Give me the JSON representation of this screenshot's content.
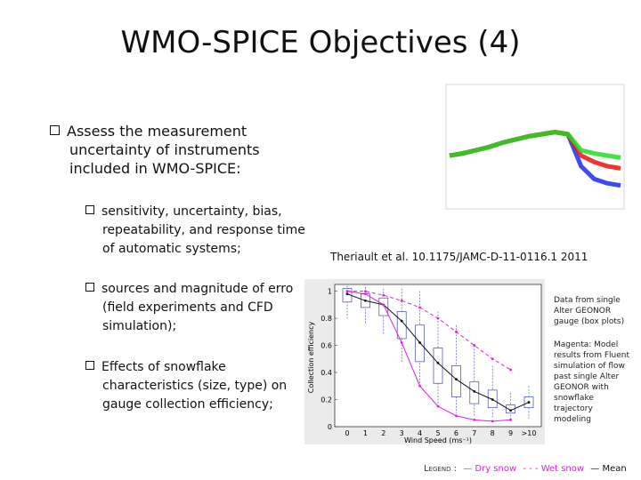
{
  "slide": {
    "title": "WMO-SPICE Objectives (4)",
    "bullet1": {
      "lines": [
        "Assess the measurement",
        "uncertainty of instruments",
        "included in WMO-SPICE:"
      ]
    },
    "sub_bullets": [
      {
        "lines": [
          "sensitivity, uncertainty, bias,",
          "repeatability, and response time",
          "of automatic systems;"
        ]
      },
      {
        "lines": [
          "sources and magnitude of erro",
          "(field experiments and CFD",
          "simulation);"
        ]
      },
      {
        "lines": [
          "Effects of snowflake",
          "characteristics (size, type) on",
          "gauge collection efficiency;"
        ]
      }
    ],
    "citation": "Theriault et al. 10.1175/JAMC-D-11-0116.1 2011",
    "annotations": {
      "box_plots": [
        "Data from single",
        "Alter GEONOR",
        "gauge (box plots)"
      ],
      "magenta": [
        "Magenta: Model",
        "results from Fluent",
        "simulation of flow",
        "past single Alter",
        "GEONOR with",
        "snowflake",
        "trajectory",
        "modeling"
      ]
    },
    "legend": {
      "label": "Legend :",
      "dry": "— Dry snow",
      "wet": "- - - Wet snow",
      "mean": "— Mean"
    },
    "colors": {
      "magenta": "#e020e0",
      "blue": "#1a2cf0",
      "green": "#22dd22",
      "red": "#ee1111"
    }
  },
  "chart_data": [
    {
      "type": "line",
      "title": "",
      "xlabel": "",
      "ylabel": "",
      "series": [
        {
          "values": [
            0.4,
            0.42,
            0.45,
            0.48,
            0.52,
            0.55,
            0.58,
            0.6,
            0.62,
            0.6,
            0.3,
            0.18,
            0.14,
            0.12
          ]
        },
        {
          "values": [
            0.4,
            0.42,
            0.45,
            0.48,
            0.52,
            0.55,
            0.58,
            0.6,
            0.62,
            0.6,
            0.4,
            0.34,
            0.3,
            0.28
          ]
        },
        {
          "values": [
            0.4,
            0.42,
            0.45,
            0.48,
            0.52,
            0.55,
            0.58,
            0.6,
            0.62,
            0.6,
            0.45,
            0.42,
            0.4,
            0.38
          ]
        }
      ]
    },
    {
      "type": "line",
      "ylabel": "Collection efficiency",
      "xlabel": "Wind Speed (ms⁻¹)",
      "categories": [
        "0",
        "1",
        "2",
        "3",
        "4",
        "5",
        "6",
        "7",
        "8",
        "9",
        ">10"
      ],
      "yticks": [
        "0",
        "0.2",
        "0.4",
        "0.6",
        "0.8",
        "1"
      ],
      "ylim": [
        0,
        1.05
      ],
      "series": [
        {
          "name": "Mean",
          "values": [
            0.98,
            0.93,
            0.9,
            0.78,
            0.62,
            0.47,
            0.35,
            0.26,
            0.2,
            0.12,
            0.18
          ]
        },
        {
          "name": "Dry snow",
          "values": [
            1.0,
            0.98,
            0.9,
            0.62,
            0.3,
            0.15,
            0.08,
            0.05,
            0.04,
            0.05,
            null
          ]
        },
        {
          "name": "Wet snow",
          "values": [
            1.0,
            1.0,
            0.97,
            0.93,
            0.88,
            0.8,
            0.7,
            0.6,
            0.5,
            0.42,
            null
          ]
        }
      ],
      "boxes": [
        {
          "q1": 0.92,
          "q3": 1.02,
          "lo": 0.8,
          "hi": 1.04
        },
        {
          "q1": 0.88,
          "q3": 0.98,
          "lo": 0.76,
          "hi": 1.03
        },
        {
          "q1": 0.82,
          "q3": 0.95,
          "lo": 0.68,
          "hi": 1.02
        },
        {
          "q1": 0.65,
          "q3": 0.85,
          "lo": 0.48,
          "hi": 1.02
        },
        {
          "q1": 0.48,
          "q3": 0.75,
          "lo": 0.3,
          "hi": 1.0
        },
        {
          "q1": 0.32,
          "q3": 0.58,
          "lo": 0.15,
          "hi": 0.85
        },
        {
          "q1": 0.22,
          "q3": 0.45,
          "lo": 0.1,
          "hi": 0.75
        },
        {
          "q1": 0.17,
          "q3": 0.33,
          "lo": 0.08,
          "hi": 0.6
        },
        {
          "q1": 0.14,
          "q3": 0.27,
          "lo": 0.06,
          "hi": 0.45
        },
        {
          "q1": 0.1,
          "q3": 0.16,
          "lo": 0.05,
          "hi": 0.25
        },
        {
          "q1": 0.14,
          "q3": 0.22,
          "lo": 0.06,
          "hi": 0.3
        }
      ]
    }
  ]
}
